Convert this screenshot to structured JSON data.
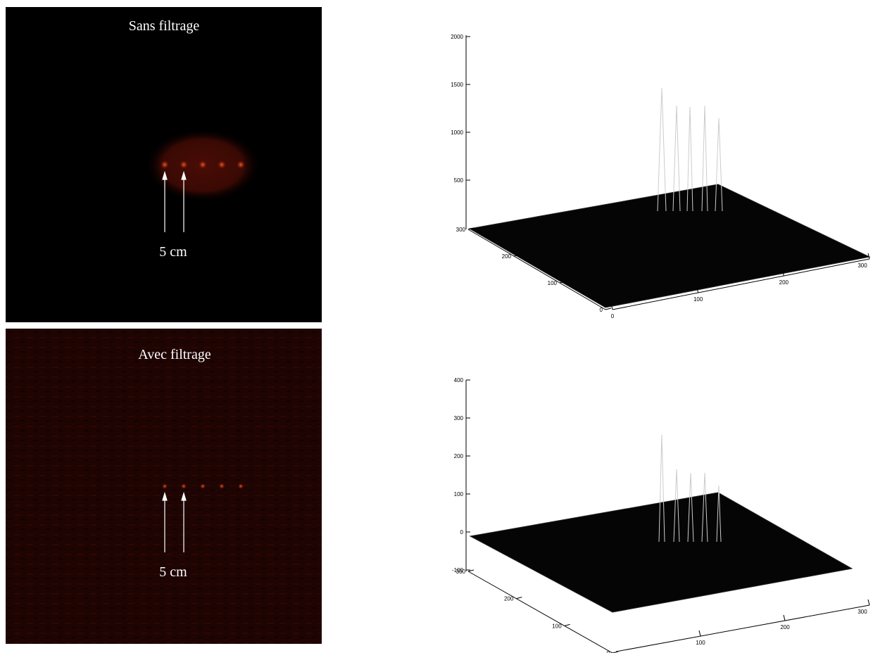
{
  "panels": [
    {
      "title": "Sans filtrage",
      "scale_label": "5 cm"
    },
    {
      "title": "Avec filtrage",
      "scale_label": "5 cm"
    }
  ],
  "plots": [
    {
      "z_ticks": [
        500,
        1000,
        1500,
        2000
      ],
      "y_ticks": [
        0,
        100,
        200,
        300
      ],
      "x_ticks": [
        0,
        100,
        200,
        300
      ]
    },
    {
      "z_ticks": [
        -100,
        0,
        100,
        200,
        300,
        400
      ],
      "y_ticks": [
        0,
        100,
        200,
        300
      ],
      "x_ticks": [
        100,
        200,
        300
      ]
    }
  ]
}
